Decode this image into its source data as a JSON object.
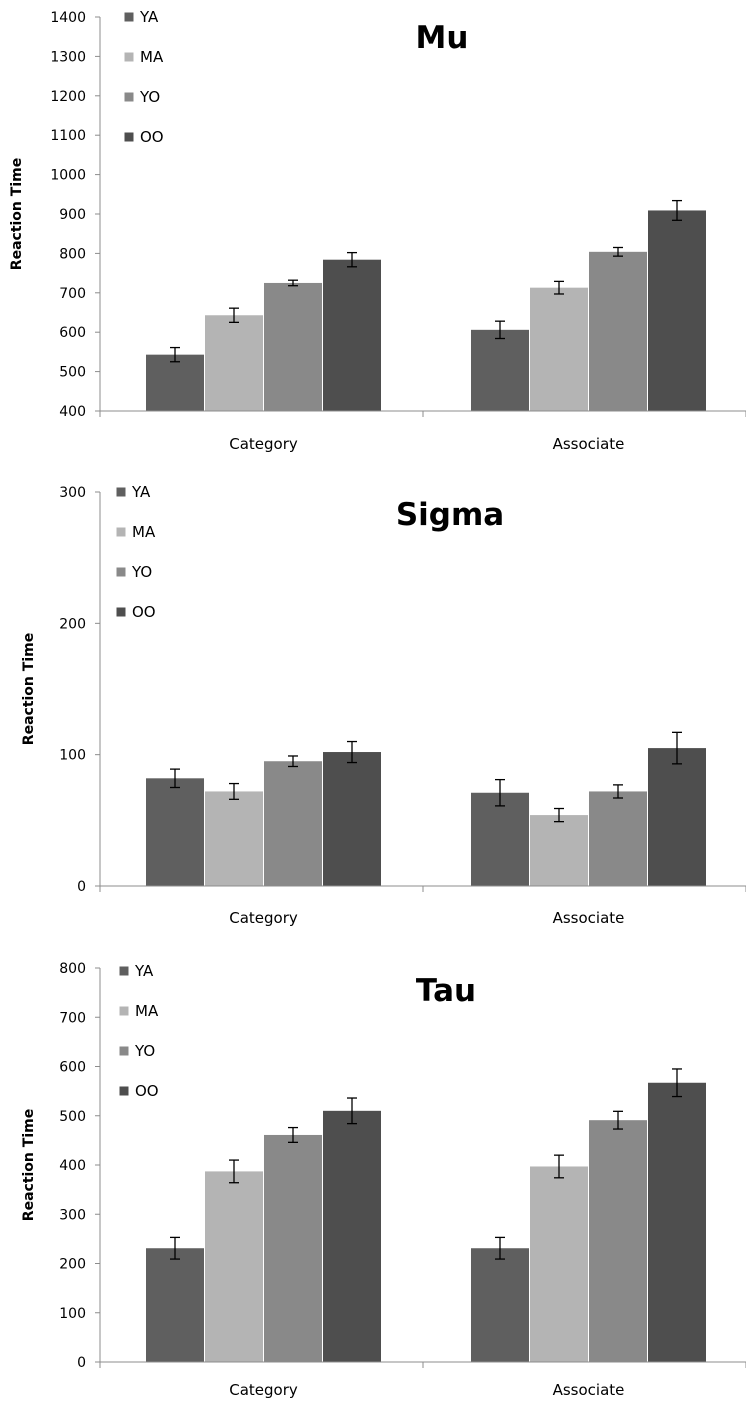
{
  "chart_data": [
    {
      "type": "bar",
      "title": "Mu",
      "ylabel": "Reaction Time",
      "xlabel": "",
      "ylim": [
        400,
        1400
      ],
      "yticks": [
        400,
        500,
        600,
        700,
        800,
        900,
        1000,
        1100,
        1200,
        1300,
        1400
      ],
      "categories": [
        "Category",
        "Associate"
      ],
      "series": [
        {
          "name": "YA",
          "values": [
            543,
            606
          ],
          "errors": [
            18,
            22
          ]
        },
        {
          "name": "MA",
          "values": [
            643,
            713
          ],
          "errors": [
            18,
            16
          ]
        },
        {
          "name": "YO",
          "values": [
            725,
            804
          ],
          "errors": [
            7,
            11
          ]
        },
        {
          "name": "OO",
          "values": [
            784,
            909
          ],
          "errors": [
            18,
            25
          ]
        }
      ],
      "legend": "top-left",
      "grid": false
    },
    {
      "type": "bar",
      "title": "Sigma",
      "ylabel": "Reaction Time",
      "xlabel": "",
      "ylim": [
        0,
        300
      ],
      "yticks": [
        0,
        100,
        200,
        300
      ],
      "categories": [
        "Category",
        "Associate"
      ],
      "series": [
        {
          "name": "YA",
          "values": [
            82,
            71
          ],
          "errors": [
            7,
            10
          ]
        },
        {
          "name": "MA",
          "values": [
            72,
            54
          ],
          "errors": [
            6,
            5
          ]
        },
        {
          "name": "YO",
          "values": [
            95,
            72
          ],
          "errors": [
            4,
            5
          ]
        },
        {
          "name": "OO",
          "values": [
            102,
            105
          ],
          "errors": [
            8,
            12
          ]
        }
      ],
      "legend": "top-left",
      "grid": false
    },
    {
      "type": "bar",
      "title": "Tau",
      "ylabel": "Reaction Time",
      "xlabel": "",
      "ylim": [
        0,
        800
      ],
      "yticks": [
        0,
        100,
        200,
        300,
        400,
        500,
        600,
        700,
        800
      ],
      "categories": [
        "Category",
        "Associate"
      ],
      "series": [
        {
          "name": "YA",
          "values": [
            231,
            231
          ],
          "errors": [
            22,
            22
          ]
        },
        {
          "name": "MA",
          "values": [
            387,
            397
          ],
          "errors": [
            23,
            23
          ]
        },
        {
          "name": "YO",
          "values": [
            461,
            491
          ],
          "errors": [
            15,
            18
          ]
        },
        {
          "name": "OO",
          "values": [
            510,
            567
          ],
          "errors": [
            26,
            28
          ]
        }
      ],
      "legend": "top-left",
      "grid": false
    }
  ],
  "colors": {
    "YA": "#5f5f5f",
    "MA": "#b4b4b4",
    "YO": "#898989",
    "OO": "#4e4e4e",
    "axis": "#8c8c8c",
    "error_bar": "#000000"
  }
}
